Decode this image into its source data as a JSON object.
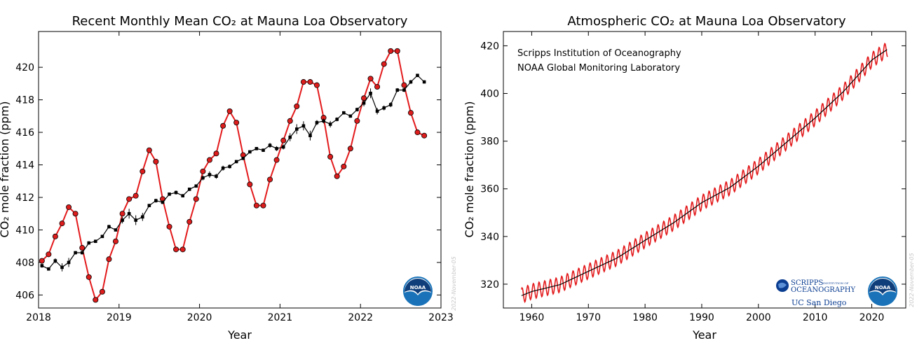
{
  "chart_data": [
    {
      "type": "line",
      "title": "Recent Monthly Mean CO₂ at Mauna Loa Observatory",
      "xlabel": "Year",
      "ylabel": "CO₂ mole fraction (ppm)",
      "xlim": [
        2018,
        2023
      ],
      "ylim": [
        405.2,
        422.2
      ],
      "xticks": [
        2018,
        2019,
        2020,
        2021,
        2022,
        2023
      ],
      "yticks": [
        406,
        408,
        410,
        412,
        414,
        416,
        418,
        420
      ],
      "stamp": "2022-November-05",
      "series": [
        {
          "color": "#e31a1c",
          "marker": "circle",
          "x": [
            2018.042,
            2018.125,
            2018.208,
            2018.292,
            2018.375,
            2018.458,
            2018.542,
            2018.625,
            2018.708,
            2018.792,
            2018.875,
            2018.958,
            2019.042,
            2019.125,
            2019.208,
            2019.292,
            2019.375,
            2019.458,
            2019.542,
            2019.625,
            2019.708,
            2019.792,
            2019.875,
            2019.958,
            2020.042,
            2020.125,
            2020.208,
            2020.292,
            2020.375,
            2020.458,
            2020.542,
            2020.625,
            2020.708,
            2020.792,
            2020.875,
            2020.958,
            2021.042,
            2021.125,
            2021.208,
            2021.292,
            2021.375,
            2021.458,
            2021.542,
            2021.625,
            2021.708,
            2021.792,
            2021.875,
            2021.958,
            2022.042,
            2022.125,
            2022.208,
            2022.292,
            2022.375,
            2022.458,
            2022.542,
            2022.625,
            2022.708,
            2022.792
          ],
          "y": [
            408.1,
            408.5,
            409.6,
            410.4,
            411.4,
            411.0,
            408.9,
            407.1,
            405.7,
            406.2,
            408.2,
            409.3,
            411.0,
            411.9,
            412.1,
            413.6,
            414.9,
            414.2,
            411.9,
            410.2,
            408.8,
            408.8,
            410.5,
            411.9,
            413.6,
            414.3,
            414.7,
            416.4,
            417.3,
            416.6,
            414.6,
            412.8,
            411.5,
            411.5,
            413.1,
            414.3,
            415.5,
            416.7,
            417.6,
            419.1,
            419.1,
            418.9,
            416.9,
            414.5,
            413.3,
            413.9,
            415.0,
            416.7,
            418.1,
            419.3,
            418.8,
            420.2,
            421.0,
            421.0,
            418.9,
            417.2,
            416.0,
            415.8
          ]
        },
        {
          "color": "#000000",
          "marker": "square",
          "x": [
            2018.042,
            2018.125,
            2018.208,
            2018.292,
            2018.375,
            2018.458,
            2018.542,
            2018.625,
            2018.708,
            2018.792,
            2018.875,
            2018.958,
            2019.042,
            2019.125,
            2019.208,
            2019.292,
            2019.375,
            2019.458,
            2019.542,
            2019.625,
            2019.708,
            2019.792,
            2019.875,
            2019.958,
            2020.042,
            2020.125,
            2020.208,
            2020.292,
            2020.375,
            2020.458,
            2020.542,
            2020.625,
            2020.708,
            2020.792,
            2020.875,
            2020.958,
            2021.042,
            2021.125,
            2021.208,
            2021.292,
            2021.375,
            2021.458,
            2021.542,
            2021.625,
            2021.708,
            2021.792,
            2021.875,
            2021.958,
            2022.042,
            2022.125,
            2022.208,
            2022.292,
            2022.375,
            2022.458,
            2022.542,
            2022.625,
            2022.708,
            2022.792
          ],
          "y": [
            407.8,
            407.6,
            408.1,
            407.7,
            408.0,
            408.6,
            408.6,
            409.2,
            409.3,
            409.6,
            410.2,
            410.0,
            410.6,
            411.0,
            410.6,
            410.8,
            411.5,
            411.8,
            411.7,
            412.2,
            412.3,
            412.1,
            412.5,
            412.7,
            413.2,
            413.4,
            413.3,
            413.8,
            413.9,
            414.2,
            414.4,
            414.8,
            415.0,
            414.9,
            415.2,
            415.0,
            415.1,
            415.7,
            416.2,
            416.4,
            415.8,
            416.6,
            416.7,
            416.5,
            416.8,
            417.2,
            417.0,
            417.4,
            417.8,
            418.4,
            417.3,
            417.5,
            417.7,
            418.6,
            418.6,
            419.1,
            419.5,
            419.1
          ],
          "yerr": [
            0.12,
            0.1,
            0.15,
            0.25,
            0.28,
            0.1,
            0.1,
            0.1,
            0.1,
            0.08,
            0.12,
            0.08,
            0.2,
            0.3,
            0.3,
            0.25,
            0.1,
            0.12,
            0.1,
            0.1,
            0.12,
            0.1,
            0.1,
            0.1,
            0.15,
            0.2,
            0.15,
            0.15,
            0.12,
            0.1,
            0.1,
            0.1,
            0.1,
            0.1,
            0.15,
            0.15,
            0.15,
            0.25,
            0.3,
            0.28,
            0.3,
            0.15,
            0.15,
            0.2,
            0.12,
            0.1,
            0.1,
            0.12,
            0.2,
            0.3,
            0.2,
            0.15,
            0.15,
            0.12,
            0.12,
            0.12,
            0.1,
            0.1
          ]
        }
      ]
    },
    {
      "type": "line",
      "title": "Atmospheric CO₂ at Mauna Loa Observatory",
      "xlabel": "Year",
      "ylabel": "CO₂ mole fraction (ppm)",
      "xlim": [
        1955,
        2026
      ],
      "ylim": [
        310,
        426
      ],
      "xticks": [
        1960,
        1970,
        1980,
        1990,
        2000,
        2010,
        2020
      ],
      "yticks": [
        320,
        340,
        360,
        380,
        400,
        420
      ],
      "annotations": [
        "Scripps Institution of Oceanography",
        "NOAA Global Monitoring Laboratory"
      ],
      "stamp": "2022-November-05",
      "series": [
        {
          "color": "#e31a1c",
          "kind": "monthly mean with seasonal cycle",
          "x_start": 1958.2,
          "x_end": 2022.8,
          "trend_points": [
            [
              1958.2,
              315.2
            ],
            [
              1960,
              316.9
            ],
            [
              1965,
              319.8
            ],
            [
              1970,
              325.4
            ],
            [
              1975,
              330.9
            ],
            [
              1980,
              338.4
            ],
            [
              1985,
              345.7
            ],
            [
              1990,
              354.2
            ],
            [
              1995,
              360.6
            ],
            [
              2000,
              369.5
            ],
            [
              2005,
              379.6
            ],
            [
              2010,
              389.7
            ],
            [
              2015,
              400.8
            ],
            [
              2020,
              414.0
            ],
            [
              2022.8,
              418.6
            ]
          ],
          "seasonal_amplitude": 3.2
        },
        {
          "color": "#000000",
          "kind": "seasonally corrected trend",
          "points": [
            [
              1958.2,
              315.2
            ],
            [
              1960,
              316.9
            ],
            [
              1965,
              319.8
            ],
            [
              1970,
              325.4
            ],
            [
              1975,
              330.9
            ],
            [
              1980,
              338.4
            ],
            [
              1985,
              345.7
            ],
            [
              1990,
              354.2
            ],
            [
              1995,
              360.6
            ],
            [
              2000,
              369.5
            ],
            [
              2005,
              379.6
            ],
            [
              2010,
              389.7
            ],
            [
              2015,
              400.8
            ],
            [
              2020,
              414.0
            ],
            [
              2022.8,
              418.6
            ]
          ]
        }
      ]
    }
  ],
  "logos": {
    "noaa": "NOAA",
    "scripps_line1": "SCRIPPS",
    "scripps_small": "INSTITUTION OF",
    "scripps_line2": "OCEANOGRAPHY",
    "ucsd": "UC San Diego"
  },
  "colors": {
    "red": "#e31a1c",
    "marker_red": "#dd1c1c",
    "black": "#000000",
    "noaa_blue": "#1a73b8",
    "noaa_dark": "#103e7a",
    "scripps_blue": "#0b3d91"
  }
}
